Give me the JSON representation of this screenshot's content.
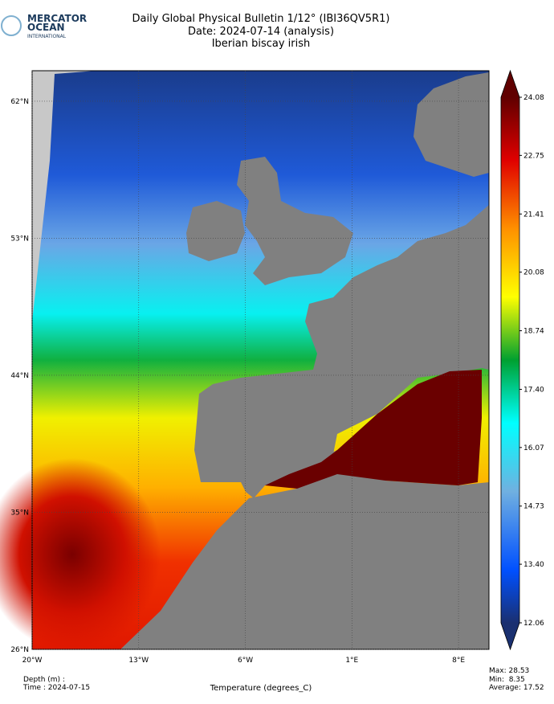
{
  "header": {
    "logo": [
      "MERCATOR",
      "OCEAN",
      "INTERNATIONAL"
    ],
    "title": [
      "Daily Global Physical Bulletin 1/12° (IBI36QV5R1)",
      "Date: 2024-07-14 (analysis)",
      "Iberian biscay irish"
    ]
  },
  "map": {
    "xlim": [
      -20,
      10
    ],
    "ylim": [
      26,
      64
    ],
    "xticks": [
      {
        "value": -20,
        "label": "20°W"
      },
      {
        "value": -13,
        "label": "13°W"
      },
      {
        "value": -6,
        "label": "6°W"
      },
      {
        "value": 1,
        "label": "1°E"
      },
      {
        "value": 8,
        "label": "8°E"
      }
    ],
    "yticks": [
      {
        "value": 26,
        "label": "26°N"
      },
      {
        "value": 35,
        "label": "35°N"
      },
      {
        "value": 44,
        "label": "44°N"
      },
      {
        "value": 53,
        "label": "53°N"
      },
      {
        "value": 62,
        "label": "62°N"
      }
    ],
    "grid": true
  },
  "colorbar": {
    "clim": [
      12.06,
      24.08
    ],
    "ticks": [
      12.06,
      {
        "value": 13.4,
        "label": "13.40"
      },
      14.73,
      16.07,
      {
        "value": 17.4,
        "label": "17.40"
      },
      18.74,
      20.08,
      21.41,
      22.75,
      24.08
    ]
  },
  "footer": {
    "depth": "Depth (m) :",
    "time": "Time : 2024-07-15",
    "variable": "Temperature (degrees_C)",
    "max": "Max: 28.53",
    "min": "Min:  8.35",
    "average": "Average: 17.52"
  }
}
